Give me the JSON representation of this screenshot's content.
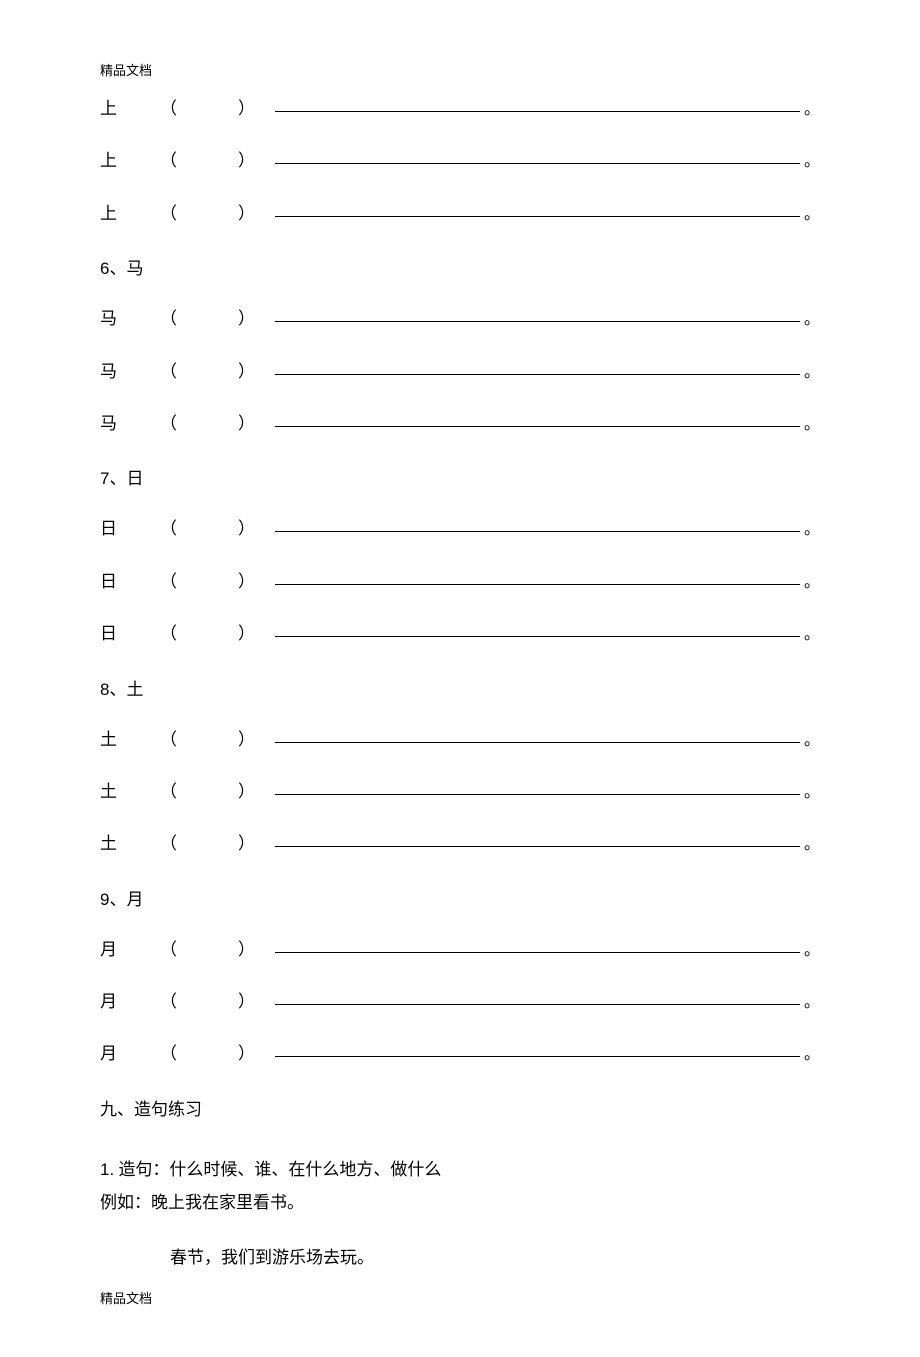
{
  "header_note": "精品文档",
  "footer_note": "精品文档",
  "paren_open": "（",
  "paren_close": "）",
  "period": "。",
  "sep": "、",
  "groups": [
    {
      "char": "上",
      "count": 3,
      "header_num": "",
      "header_char": ""
    },
    {
      "char": "马",
      "count": 3,
      "header_num": "6",
      "header_char": "马"
    },
    {
      "char": "日",
      "count": 3,
      "header_num": "7",
      "header_char": "日"
    },
    {
      "char": "土",
      "count": 3,
      "header_num": "8",
      "header_char": "土"
    },
    {
      "char": "月",
      "count": 3,
      "header_num": "9",
      "header_char": "月"
    }
  ],
  "section9": {
    "prefix": "九、",
    "title": "造句练习"
  },
  "instruction": {
    "num": "1.",
    "line1_rest": " 造句：什么时候、谁、在什么地方、做什么",
    "line2": "例如：晚上我在家里看书。",
    "line3": "春节，我们到游乐场去玩。"
  }
}
